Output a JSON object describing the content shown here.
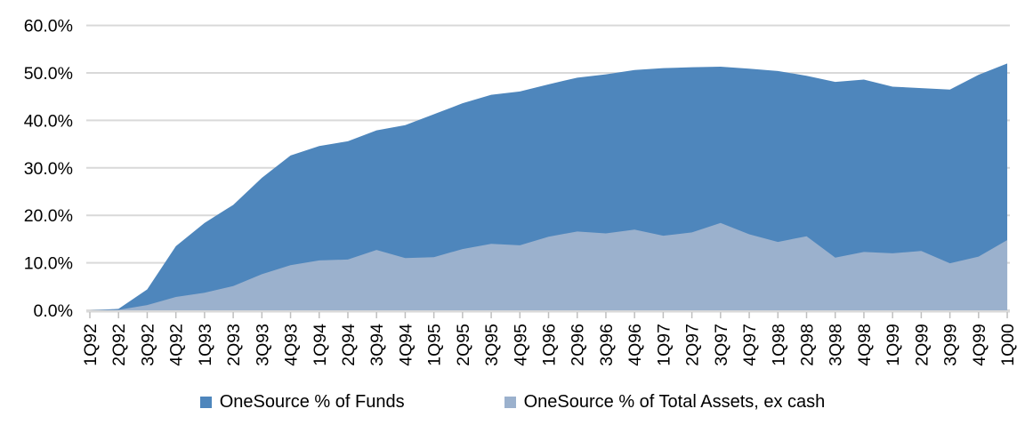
{
  "chart_data": {
    "type": "area",
    "overlapping": true,
    "categories": [
      "1Q92",
      "2Q92",
      "3Q92",
      "4Q92",
      "1Q93",
      "2Q93",
      "3Q93",
      "4Q93",
      "1Q94",
      "2Q94",
      "3Q94",
      "4Q94",
      "1Q95",
      "2Q95",
      "3Q95",
      "4Q95",
      "1Q96",
      "2Q96",
      "3Q96",
      "4Q96",
      "1Q97",
      "2Q97",
      "3Q97",
      "4Q97",
      "1Q98",
      "2Q98",
      "3Q98",
      "4Q98",
      "1Q99",
      "2Q99",
      "3Q99",
      "4Q99",
      "1Q00"
    ],
    "series": [
      {
        "name": "OneSource % of Funds",
        "color": "#4E86BC",
        "values": [
          0,
          0.3,
          4.4,
          13.5,
          18.4,
          22.2,
          27.9,
          32.6,
          34.6,
          35.6,
          37.9,
          39.0,
          41.3,
          43.6,
          45.4,
          46.1,
          47.6,
          49.0,
          49.7,
          50.6,
          51.0,
          51.2,
          51.3,
          50.9,
          50.4,
          49.4,
          48.1,
          48.6,
          47.1,
          46.8,
          46.5,
          49.6,
          52.0
        ]
      },
      {
        "name": "OneSource % of Total Assets, ex cash",
        "color": "#9BB1CD",
        "values": [
          0,
          0.1,
          1.1,
          2.8,
          3.7,
          5.1,
          7.6,
          9.5,
          10.5,
          10.7,
          12.7,
          11.0,
          11.2,
          12.9,
          14.0,
          13.7,
          15.5,
          16.6,
          16.2,
          17.0,
          15.7,
          16.4,
          18.4,
          16.0,
          14.4,
          15.6,
          11.1,
          12.3,
          12.0,
          12.5,
          9.9,
          11.3,
          14.8
        ]
      }
    ],
    "title": "",
    "xlabel": "",
    "ylabel": "",
    "ylim": [
      0,
      60
    ],
    "y_ticks": [
      {
        "label": "0.0%",
        "value": 0
      },
      {
        "label": "10.0%",
        "value": 10
      },
      {
        "label": "20.0%",
        "value": 20
      },
      {
        "label": "30.0%",
        "value": 30
      },
      {
        "label": "40.0%",
        "value": 40
      },
      {
        "label": "50.0%",
        "value": 50
      },
      {
        "label": "60.0%",
        "value": 60
      }
    ],
    "grid": true,
    "legend_position": "bottom",
    "colors": {
      "gridline": "#D9D9D9",
      "axis_line": "#D9D9D9",
      "tick": "#BFBFBF",
      "text": "#000000"
    }
  }
}
